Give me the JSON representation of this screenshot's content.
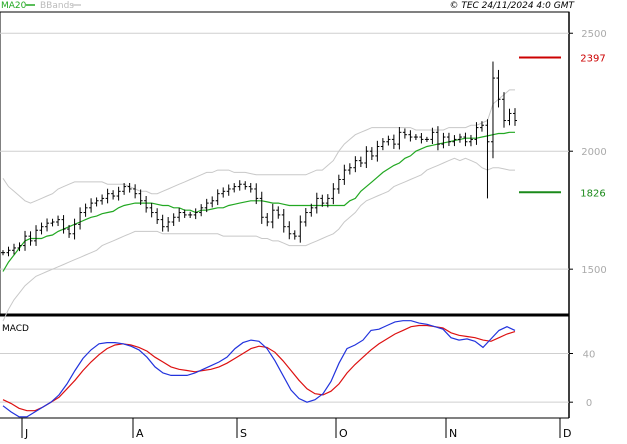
{
  "header": {
    "legend_ma": "MA20",
    "legend_bb": "BBands",
    "copyright": "© TEC 24/11/2024 4:0 GMT"
  },
  "macd_panel": {
    "title": "MACD"
  },
  "colors": {
    "price_bar": "#000000",
    "ma20": "#22a822",
    "bbands": "#c8c8c8",
    "resistance": "#cc0000",
    "support": "#1a8a1a",
    "macd_line": "#2233dd",
    "signal_line": "#dd1111",
    "grid": "#cfcfcf",
    "frame": "#000000"
  },
  "chart_data": [
    {
      "type": "ohlc",
      "ylim": [
        1310,
        2590
      ],
      "y_ticks": [
        {
          "value": 1500,
          "label": "1500"
        },
        {
          "value": 2000,
          "label": "2000"
        },
        {
          "value": 2500,
          "label": "2500"
        }
      ],
      "x_ticks": [
        "J",
        "A",
        "S",
        "O",
        "N",
        "D"
      ],
      "levels": [
        {
          "value": 2397,
          "label": "2397",
          "kind": "resistance"
        },
        {
          "value": 1826,
          "label": "1826",
          "kind": "support"
        }
      ],
      "close": [
        1570,
        1580,
        1590,
        1600,
        1640,
        1620,
        1665,
        1680,
        1695,
        1700,
        1710,
        1670,
        1650,
        1690,
        1740,
        1760,
        1780,
        1790,
        1800,
        1820,
        1810,
        1830,
        1850,
        1840,
        1820,
        1790,
        1760,
        1740,
        1710,
        1680,
        1700,
        1720,
        1740,
        1730,
        1730,
        1740,
        1760,
        1780,
        1790,
        1820,
        1830,
        1840,
        1850,
        1860,
        1850,
        1840,
        1800,
        1720,
        1700,
        1750,
        1730,
        1680,
        1650,
        1640,
        1700,
        1740,
        1760,
        1800,
        1780,
        1800,
        1840,
        1880,
        1920,
        1930,
        1960,
        1950,
        2000,
        1980,
        2020,
        2040,
        2050,
        2030,
        2080,
        2070,
        2060,
        2060,
        2050,
        2050,
        2080,
        2030,
        2060,
        2040,
        2050,
        2060,
        2040,
        2050,
        2100,
        2110,
        2040,
        2310,
        2220,
        2130,
        2160,
        2130
      ],
      "ma20": [
        1490,
        1530,
        1560,
        1590,
        1620,
        1630,
        1630,
        1630,
        1640,
        1645,
        1660,
        1670,
        1680,
        1690,
        1700,
        1710,
        1720,
        1725,
        1735,
        1740,
        1745,
        1760,
        1770,
        1775,
        1780,
        1780,
        1780,
        1780,
        1775,
        1770,
        1770,
        1760,
        1760,
        1750,
        1750,
        1740,
        1750,
        1750,
        1755,
        1760,
        1760,
        1770,
        1775,
        1780,
        1785,
        1790,
        1790,
        1790,
        1785,
        1780,
        1780,
        1775,
        1770,
        1770,
        1770,
        1770,
        1770,
        1770,
        1770,
        1770,
        1770,
        1770,
        1770,
        1790,
        1800,
        1830,
        1850,
        1870,
        1890,
        1910,
        1925,
        1940,
        1950,
        1970,
        1980,
        2000,
        2010,
        2020,
        2025,
        2030,
        2035,
        2040,
        2045,
        2050,
        2055,
        2055,
        2055,
        2060,
        2065,
        2070,
        2075,
        2075,
        2080,
        2080
      ],
      "bb_upper": [
        1885,
        1850,
        1830,
        1810,
        1790,
        1780,
        1790,
        1800,
        1810,
        1820,
        1840,
        1850,
        1860,
        1870,
        1870,
        1870,
        1870,
        1870,
        1870,
        1860,
        1860,
        1860,
        1860,
        1850,
        1840,
        1830,
        1830,
        1820,
        1820,
        1830,
        1840,
        1850,
        1860,
        1870,
        1880,
        1890,
        1900,
        1910,
        1910,
        1920,
        1920,
        1920,
        1910,
        1910,
        1910,
        1905,
        1900,
        1900,
        1900,
        1900,
        1900,
        1900,
        1900,
        1900,
        1900,
        1900,
        1910,
        1920,
        1920,
        1940,
        1960,
        2000,
        2030,
        2050,
        2070,
        2080,
        2090,
        2100,
        2100,
        2100,
        2100,
        2100,
        2100,
        2100,
        2100,
        2090,
        2090,
        2090,
        2090,
        2090,
        2090,
        2100,
        2100,
        2100,
        2100,
        2110,
        2110,
        2120,
        2130,
        2200,
        2220,
        2240,
        2260,
        2260
      ],
      "bb_lower": [
        1280,
        1330,
        1370,
        1400,
        1430,
        1450,
        1470,
        1480,
        1490,
        1500,
        1510,
        1520,
        1530,
        1540,
        1550,
        1560,
        1570,
        1580,
        1600,
        1610,
        1620,
        1630,
        1640,
        1650,
        1660,
        1660,
        1660,
        1660,
        1660,
        1650,
        1650,
        1650,
        1650,
        1650,
        1650,
        1650,
        1650,
        1650,
        1650,
        1650,
        1640,
        1640,
        1640,
        1640,
        1640,
        1640,
        1640,
        1630,
        1630,
        1620,
        1620,
        1610,
        1600,
        1600,
        1600,
        1600,
        1610,
        1620,
        1630,
        1640,
        1650,
        1670,
        1700,
        1720,
        1740,
        1770,
        1790,
        1800,
        1810,
        1820,
        1830,
        1850,
        1860,
        1870,
        1880,
        1890,
        1900,
        1920,
        1930,
        1940,
        1950,
        1960,
        1970,
        1960,
        1970,
        1960,
        1950,
        1930,
        1920,
        1930,
        1930,
        1925,
        1920,
        1920
      ]
    },
    {
      "type": "line",
      "title": "MACD",
      "ylim": [
        -13,
        70
      ],
      "y_ticks": [
        {
          "value": 40,
          "label": "40"
        },
        {
          "value": 0,
          "label": "0"
        }
      ],
      "series": [
        {
          "name": "MACD",
          "values": [
            -3,
            -8,
            -12,
            -12,
            -8,
            -4,
            0,
            6,
            15,
            26,
            36,
            43,
            48,
            49,
            49,
            48,
            46,
            43,
            37,
            29,
            24,
            22,
            22,
            22,
            24,
            27,
            30,
            33,
            37,
            44,
            49,
            51,
            50,
            44,
            34,
            22,
            10,
            3,
            0,
            2,
            7,
            17,
            32,
            44,
            47,
            51,
            59,
            60,
            63,
            66,
            67,
            67,
            65,
            64,
            62,
            60,
            53,
            51,
            52,
            50,
            45,
            52,
            59,
            62,
            59
          ]
        },
        {
          "name": "Signal",
          "values": [
            2,
            -1,
            -5,
            -7,
            -7,
            -4,
            0,
            4,
            11,
            18,
            26,
            33,
            39,
            44,
            47,
            48,
            47,
            45,
            42,
            37,
            33,
            29,
            27,
            26,
            25,
            26,
            27,
            29,
            32,
            36,
            40,
            44,
            46,
            45,
            41,
            34,
            26,
            18,
            11,
            7,
            6,
            9,
            15,
            24,
            31,
            37,
            43,
            48,
            52,
            56,
            59,
            62,
            63,
            63,
            62,
            61,
            57,
            55,
            54,
            53,
            51,
            50,
            53,
            56,
            58
          ]
        }
      ]
    }
  ]
}
